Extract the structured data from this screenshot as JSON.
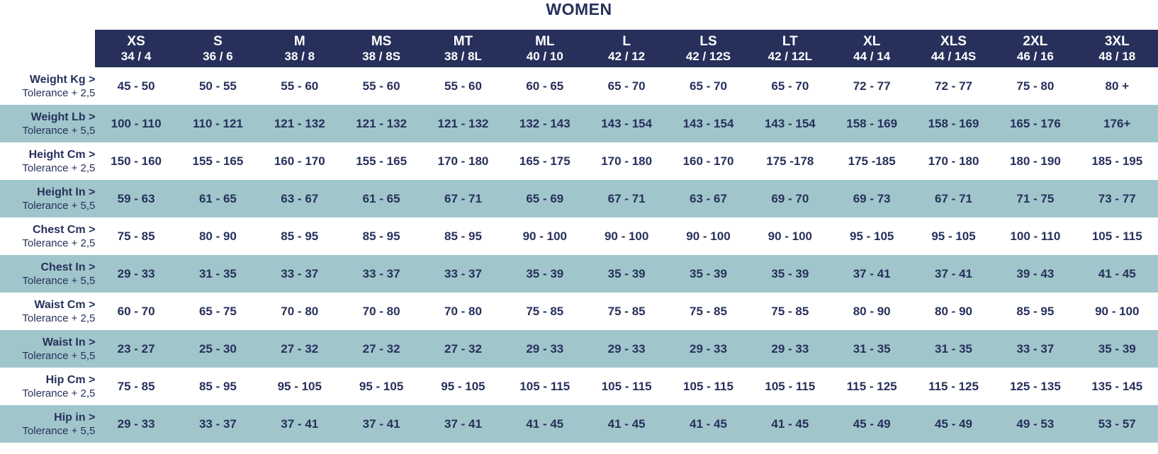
{
  "title": "WOMEN",
  "sizes": [
    {
      "code": "XS",
      "alt": "34 / 4"
    },
    {
      "code": "S",
      "alt": "36 / 6"
    },
    {
      "code": "M",
      "alt": "38 / 8"
    },
    {
      "code": "MS",
      "alt": "38 / 8S"
    },
    {
      "code": "MT",
      "alt": "38 / 8L"
    },
    {
      "code": "ML",
      "alt": "40 / 10"
    },
    {
      "code": "L",
      "alt": "42 / 12"
    },
    {
      "code": "LS",
      "alt": "42 / 12S"
    },
    {
      "code": "LT",
      "alt": "42 / 12L"
    },
    {
      "code": "XL",
      "alt": "44 / 14"
    },
    {
      "code": "XLS",
      "alt": "44 / 14S"
    },
    {
      "code": "2XL",
      "alt": "46 / 16"
    },
    {
      "code": "3XL",
      "alt": "48 / 18"
    }
  ],
  "rows": [
    {
      "label": "Weight Kg >",
      "tolerance": "Tolerance + 2,5",
      "shaded": false,
      "values": [
        "45 - 50",
        "50 - 55",
        "55 - 60",
        "55 - 60",
        "55 - 60",
        "60 - 65",
        "65 - 70",
        "65 - 70",
        "65 - 70",
        "72 - 77",
        "72 - 77",
        "75 - 80",
        "80 +"
      ]
    },
    {
      "label": "Weight Lb >",
      "tolerance": "Tolerance + 5,5",
      "shaded": true,
      "values": [
        "100 - 110",
        "110 - 121",
        "121 - 132",
        "121 - 132",
        "121 - 132",
        "132 - 143",
        "143 - 154",
        "143 - 154",
        "143 - 154",
        "158 - 169",
        "158 - 169",
        "165 - 176",
        "176+"
      ]
    },
    {
      "label": "Height Cm >",
      "tolerance": "Tolerance + 2,5",
      "shaded": false,
      "values": [
        "150 - 160",
        "155 - 165",
        "160 - 170",
        "155 - 165",
        "170 - 180",
        "165 - 175",
        "170 - 180",
        "160 - 170",
        "175 -178",
        "175 -185",
        "170 - 180",
        "180 - 190",
        "185 - 195"
      ]
    },
    {
      "label": "Height In >",
      "tolerance": "Tolerance + 5,5",
      "shaded": true,
      "values": [
        "59 - 63",
        "61 - 65",
        "63 - 67",
        "61 - 65",
        "67 - 71",
        "65 - 69",
        "67 - 71",
        "63 - 67",
        "69 - 70",
        "69 - 73",
        "67 - 71",
        "71 - 75",
        "73 - 77"
      ]
    },
    {
      "label": "Chest Cm >",
      "tolerance": "Tolerance + 2,5",
      "shaded": false,
      "values": [
        "75 - 85",
        "80 - 90",
        "85 - 95",
        "85 - 95",
        "85 - 95",
        "90 - 100",
        "90 - 100",
        "90 - 100",
        "90 - 100",
        "95 - 105",
        "95 - 105",
        "100 - 110",
        "105 - 115"
      ]
    },
    {
      "label": "Chest In >",
      "tolerance": "Tolerance + 5,5",
      "shaded": true,
      "values": [
        "29 - 33",
        "31 - 35",
        "33 - 37",
        "33 - 37",
        "33 - 37",
        "35 - 39",
        "35 - 39",
        "35 - 39",
        "35 - 39",
        "37 - 41",
        "37 - 41",
        "39 - 43",
        "41 - 45"
      ]
    },
    {
      "label": "Waist Cm >",
      "tolerance": "Tolerance + 2,5",
      "shaded": false,
      "values": [
        "60 - 70",
        "65 - 75",
        "70 - 80",
        "70 - 80",
        "70 - 80",
        "75 - 85",
        "75 - 85",
        "75 - 85",
        "75 - 85",
        "80 - 90",
        "80 - 90",
        "85 - 95",
        "90 - 100"
      ]
    },
    {
      "label": "Waist In >",
      "tolerance": "Tolerance + 5,5",
      "shaded": true,
      "values": [
        "23 - 27",
        "25 - 30",
        "27 - 32",
        "27 - 32",
        "27 - 32",
        "29 - 33",
        "29 - 33",
        "29 - 33",
        "29 - 33",
        "31 - 35",
        "31 - 35",
        "33 - 37",
        "35 - 39"
      ]
    },
    {
      "label": "Hip Cm >",
      "tolerance": "Tolerance + 2,5",
      "shaded": false,
      "values": [
        "75 - 85",
        "85 - 95",
        "95 - 105",
        "95 - 105",
        "95 - 105",
        "105 - 115",
        "105 - 115",
        "105 - 115",
        "105 - 115",
        "115 - 125",
        "115 - 125",
        "125 - 135",
        "135 - 145"
      ]
    },
    {
      "label": "Hip in >",
      "tolerance": "Tolerance + 5,5",
      "shaded": true,
      "values": [
        "29 - 33",
        "33 - 37",
        "37 - 41",
        "37 - 41",
        "37 - 41",
        "41 - 45",
        "41 - 45",
        "41 - 45",
        "41 - 45",
        "45 - 49",
        "45 - 49",
        "49 - 53",
        "53 - 57"
      ]
    }
  ],
  "colors": {
    "navy": "#27305b",
    "teal": "#a0c6cb",
    "white": "#ffffff"
  }
}
